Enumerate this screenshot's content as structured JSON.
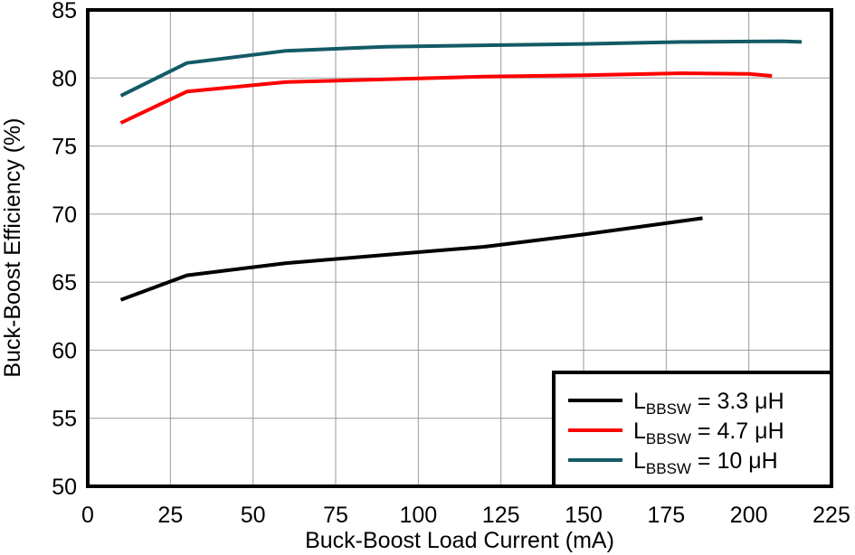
{
  "chart_data": {
    "type": "line",
    "xlabel": "Buck-Boost Load Current (mA)",
    "ylabel": "Buck-Boost Efficiency (%)",
    "xlim": [
      0,
      225
    ],
    "ylim": [
      50,
      85
    ],
    "xticks": [
      "0",
      "25",
      "50",
      "75",
      "100",
      "125",
      "150",
      "175",
      "200",
      "225"
    ],
    "yticks": [
      "50",
      "55",
      "60",
      "65",
      "70",
      "75",
      "80",
      "85"
    ],
    "xtick_values": [
      0,
      25,
      50,
      75,
      100,
      125,
      150,
      175,
      200,
      225
    ],
    "ytick_values": [
      50,
      55,
      60,
      65,
      70,
      75,
      80,
      85
    ],
    "grid": true,
    "legend_position": "bottom-right",
    "series": [
      {
        "legend_main": "L",
        "legend_sub": "BBSW",
        "legend_rest": " = 3.3 μH",
        "color": "#000000",
        "x": [
          10,
          30,
          60,
          90,
          120,
          150,
          180,
          186
        ],
        "y": [
          63.7,
          65.5,
          66.4,
          67.0,
          67.6,
          68.5,
          69.5,
          69.7
        ]
      },
      {
        "legend_main": "L",
        "legend_sub": "BBSW",
        "legend_rest": " = 4.7 μH",
        "color": "#ff0000",
        "x": [
          10,
          30,
          60,
          90,
          120,
          150,
          180,
          200,
          207
        ],
        "y": [
          76.7,
          79.0,
          79.7,
          79.9,
          80.1,
          80.2,
          80.35,
          80.3,
          80.15
        ]
      },
      {
        "legend_main": "L",
        "legend_sub": "BBSW",
        "legend_rest": " = 10 μH",
        "color": "#135a66",
        "x": [
          10,
          30,
          60,
          90,
          120,
          150,
          180,
          210,
          216
        ],
        "y": [
          78.7,
          81.1,
          82.0,
          82.3,
          82.4,
          82.5,
          82.65,
          82.7,
          82.65
        ]
      }
    ]
  }
}
